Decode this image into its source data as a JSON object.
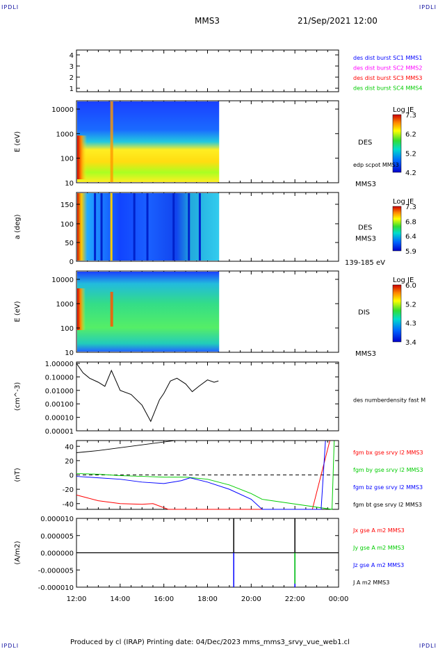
{
  "corners": {
    "tl": "IPDLI",
    "tr": "IPDLI",
    "bl": "IPDLI",
    "br": "IPDLI"
  },
  "header": {
    "spacecraft": "MMS3",
    "datetime": "21/Sep/2021 12:00"
  },
  "footer": {
    "text": "Produced by cl (IRAP)   Printing date: 04/Dec/2023   mms_mms3_srvy_vue_web1.cl"
  },
  "colors": {
    "blue": "#0000ff",
    "magenta": "#ff00ff",
    "red": "#ff0000",
    "green": "#00cc00",
    "black": "#000000"
  },
  "chart_data": [
    {
      "type": "table",
      "id": "burst",
      "yticks": [
        "1",
        "2",
        "3",
        "4"
      ],
      "legend": [
        {
          "text": "des dist burst SC1 MMS1",
          "color": "#0000ff"
        },
        {
          "text": "des dist burst SC2 MMS2",
          "color": "#ff00ff"
        },
        {
          "text": "des dist burst SC3 MMS3",
          "color": "#ff0000"
        },
        {
          "text": "des dist burst SC4 MMS4",
          "color": "#00cc00"
        }
      ]
    },
    {
      "type": "heatmap",
      "id": "des_energy",
      "ylabel": "E (eV)",
      "yticks": [
        "10000",
        "1000",
        "100",
        "10"
      ],
      "right_labels": {
        "main": "DES",
        "sub": "edp scpot MMS3",
        "bottom": "MMS3"
      },
      "colorbar": {
        "title": "Log JE",
        "ticks": [
          "7.3",
          "6.2",
          "5.2",
          "4.2"
        ]
      },
      "x_range": [
        "12:00",
        "18:30"
      ]
    },
    {
      "type": "heatmap",
      "id": "des_pitch",
      "ylabel": "a (deg)",
      "yticks": [
        "150",
        "100",
        "50",
        "0"
      ],
      "right_labels": {
        "main": "DES",
        "sub": "MMS3",
        "bottom": "139-185 eV"
      },
      "colorbar": {
        "title": "Log JE",
        "ticks": [
          "7.3",
          "6.8",
          "6.4",
          "5.9"
        ]
      },
      "x_range": [
        "12:00",
        "18:30"
      ]
    },
    {
      "type": "heatmap",
      "id": "dis_energy",
      "ylabel": "E (eV)",
      "yticks": [
        "10000",
        "1000",
        "100",
        "10"
      ],
      "right_labels": {
        "main": "DIS",
        "bottom": "MMS3"
      },
      "colorbar": {
        "title": "Log JE",
        "ticks": [
          "6.0",
          "5.2",
          "4.3",
          "3.4"
        ]
      },
      "x_range": [
        "12:00",
        "18:30"
      ]
    },
    {
      "type": "line",
      "id": "density",
      "ylabel": "(cm^-3)",
      "yticks": [
        "1.00000",
        "0.10000",
        "0.01000",
        "0.00100",
        "0.00010",
        "0.00001"
      ],
      "legend": [
        {
          "text": "des numberdensity fast M",
          "color": "#000000"
        }
      ],
      "series": [
        {
          "x_hours": [
            12.0,
            12.3,
            12.6,
            13.0,
            13.3,
            13.6,
            14.0,
            14.5,
            15.0,
            15.4,
            15.8,
            16.0,
            16.3,
            16.6,
            17.0,
            17.3,
            17.6,
            18.0,
            18.3,
            18.5
          ],
          "y": [
            1.0,
            0.2,
            0.08,
            0.04,
            0.02,
            0.3,
            0.01,
            0.005,
            0.0008,
            5e-05,
            0.002,
            0.006,
            0.05,
            0.08,
            0.03,
            0.008,
            0.02,
            0.06,
            0.04,
            0.05
          ]
        }
      ]
    },
    {
      "type": "line",
      "id": "fgm",
      "ylabel": "(nT)",
      "yticks": [
        "40",
        "20",
        "0",
        "-20",
        "-40"
      ],
      "ylim": [
        -48,
        48
      ],
      "legend": [
        {
          "text": "fgm bx gse srvy l2 MMS3",
          "color": "#ff0000"
        },
        {
          "text": "fgm by gse srvy l2 MMS3",
          "color": "#00cc00"
        },
        {
          "text": "fgm bz gse srvy l2 MMS3",
          "color": "#0000ff"
        },
        {
          "text": "fgm bt gse srvy l2 MMS3",
          "color": "#000000"
        }
      ],
      "series": [
        {
          "name": "bx",
          "color": "#ff0000",
          "x_hours": [
            12.0,
            12.5,
            13.0,
            14.0,
            15.0,
            15.5,
            16.2,
            22.8,
            23.6
          ],
          "y": [
            -28,
            -32,
            -36,
            -40,
            -41,
            -40,
            -48,
            -48,
            48
          ]
        },
        {
          "name": "by",
          "color": "#00cc00",
          "x_hours": [
            12.0,
            13.0,
            14.0,
            15.0,
            16.0,
            17.0,
            18.0,
            19.0,
            20.0,
            20.5,
            23.7,
            23.8
          ],
          "y": [
            2,
            1,
            -1,
            -2,
            -3,
            -3,
            -6,
            -14,
            -26,
            -34,
            -48,
            48
          ]
        },
        {
          "name": "bz",
          "color": "#0000ff",
          "x_hours": [
            12.0,
            13.0,
            14.0,
            15.0,
            16.0,
            16.8,
            17.2,
            18.0,
            19.0,
            20.0,
            20.5,
            23.2,
            23.4
          ],
          "y": [
            -2,
            -4,
            -6,
            -10,
            -12,
            -8,
            -4,
            -10,
            -20,
            -34,
            -48,
            -48,
            48
          ]
        },
        {
          "name": "bt",
          "color": "#000000",
          "x_hours": [
            12.0,
            13.0,
            14.0,
            15.0,
            16.0,
            16.5,
            23.9
          ],
          "y": [
            31,
            34,
            38,
            42,
            46,
            48,
            48
          ]
        }
      ]
    },
    {
      "type": "line",
      "id": "current",
      "ylabel": "(A/m2)",
      "yticks": [
        "0.000010",
        "0.000005",
        "0.000000",
        "-0.000005",
        "-0.000010"
      ],
      "ylim": [
        -1e-05,
        1e-05
      ],
      "legend": [
        {
          "text": "Jx gse A m2 MMS3",
          "color": "#ff0000"
        },
        {
          "text": "Jy gse A m2 MMS3",
          "color": "#00cc00"
        },
        {
          "text": "Jz gse A m2 MMS3",
          "color": "#0000ff"
        },
        {
          "text": "J A m2 MMS3",
          "color": "#000000"
        }
      ],
      "spikes": [
        {
          "x_hours": 19.2,
          "series": "J",
          "y": 1e-05
        },
        {
          "x_hours": 19.2,
          "series": "Jz",
          "y": -1e-05
        },
        {
          "x_hours": 22.0,
          "series": "J",
          "y": 1e-05
        },
        {
          "x_hours": 22.0,
          "series": "Jz",
          "y": -1e-05
        },
        {
          "x_hours": 22.0,
          "series": "Jy",
          "y": -9e-06
        }
      ]
    }
  ],
  "xaxis": {
    "ticks": [
      "12:00",
      "14:00",
      "16:00",
      "18:00",
      "20:00",
      "22:00",
      "00:00"
    ]
  }
}
